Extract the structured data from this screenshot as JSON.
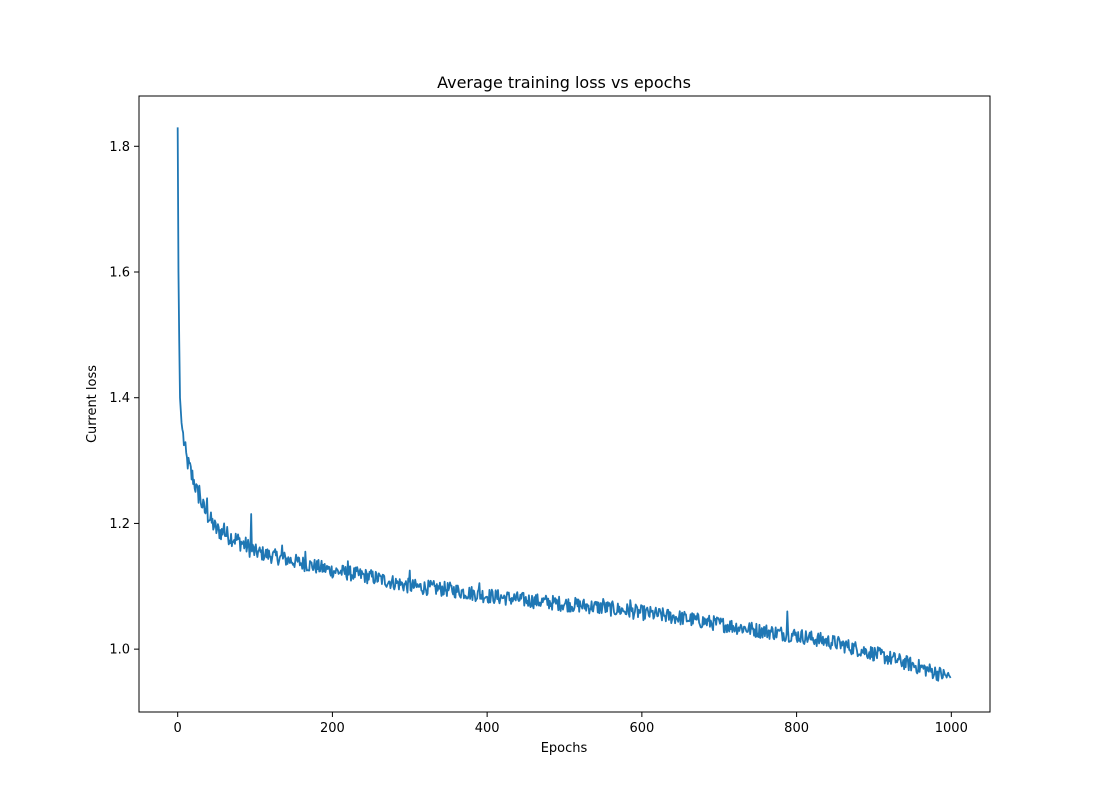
{
  "chart_data": {
    "type": "line",
    "title": "Average training loss vs epochs",
    "xlabel": "Epochs",
    "ylabel": "Current loss",
    "xlim": [
      -50,
      1050
    ],
    "ylim": [
      0.9,
      1.88
    ],
    "xticks": [
      0,
      200,
      400,
      600,
      800,
      1000
    ],
    "yticks": [
      1.0,
      1.2,
      1.4,
      1.6,
      1.8
    ],
    "ytick_labels": [
      "1.0",
      "1.2",
      "1.4",
      "1.6",
      "1.8"
    ],
    "grid": false,
    "legend": "none",
    "series": [
      {
        "color": "#1f77b4",
        "x_start": 0,
        "x_step": 1,
        "count": 1000,
        "anchors": [
          [
            0,
            1.83
          ],
          [
            1,
            1.6
          ],
          [
            2,
            1.49
          ],
          [
            3,
            1.4
          ],
          [
            5,
            1.36
          ],
          [
            8,
            1.33
          ],
          [
            12,
            1.3
          ],
          [
            18,
            1.28
          ],
          [
            25,
            1.25
          ],
          [
            35,
            1.22
          ],
          [
            50,
            1.19
          ],
          [
            75,
            1.175
          ],
          [
            100,
            1.155
          ],
          [
            150,
            1.14
          ],
          [
            200,
            1.125
          ],
          [
            250,
            1.115
          ],
          [
            300,
            1.1
          ],
          [
            350,
            1.095
          ],
          [
            400,
            1.085
          ],
          [
            450,
            1.078
          ],
          [
            500,
            1.072
          ],
          [
            550,
            1.066
          ],
          [
            600,
            1.058
          ],
          [
            650,
            1.05
          ],
          [
            700,
            1.04
          ],
          [
            750,
            1.03
          ],
          [
            800,
            1.022
          ],
          [
            850,
            1.01
          ],
          [
            900,
            0.993
          ],
          [
            950,
            0.975
          ],
          [
            999,
            0.955
          ]
        ],
        "spikes": [
          [
            18,
            1.27
          ],
          [
            28,
            1.26
          ],
          [
            38,
            1.24
          ],
          [
            60,
            1.2
          ],
          [
            95,
            1.215
          ],
          [
            135,
            1.165
          ],
          [
            165,
            1.155
          ],
          [
            220,
            1.14
          ],
          [
            300,
            1.125
          ],
          [
            390,
            1.105
          ],
          [
            550,
            1.08
          ],
          [
            585,
            1.078
          ],
          [
            788,
            1.06
          ]
        ],
        "noise_amplitude": 0.012
      }
    ]
  }
}
